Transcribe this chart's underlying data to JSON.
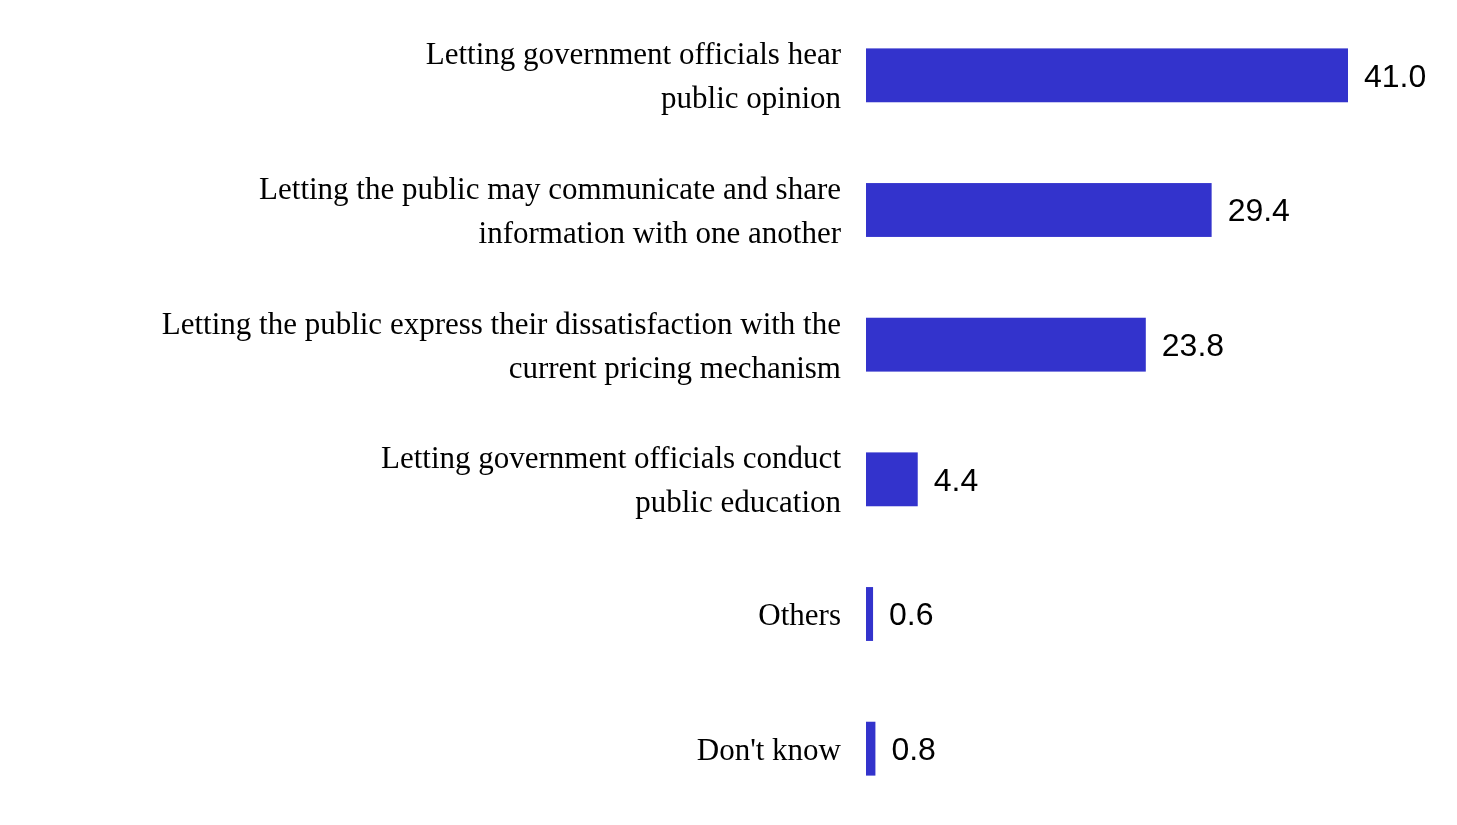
{
  "chart_data": {
    "type": "bar",
    "orientation": "horizontal",
    "categories": [
      "Letting government officials hear public opinion",
      "Letting the public may communicate and share information with one another",
      "Letting the public express their dissatisfaction with the current pricing mechanism",
      "Letting government officials conduct public education",
      "Others",
      "Don't know"
    ],
    "values": [
      41.0,
      29.4,
      23.8,
      4.4,
      0.6,
      0.8
    ],
    "value_labels": [
      "41.0",
      "29.4",
      "23.8",
      "4.4",
      "0.6",
      "0.8"
    ],
    "color": "#3333cc"
  }
}
